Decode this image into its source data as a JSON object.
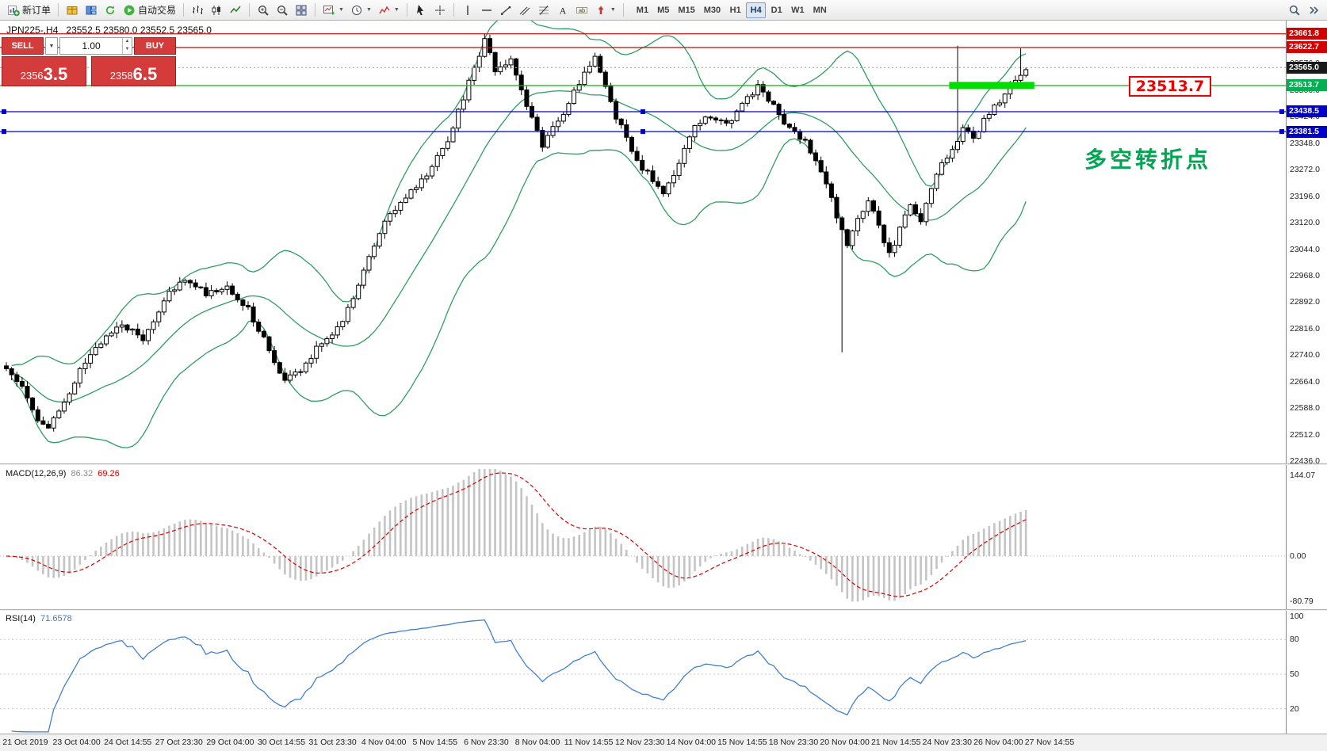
{
  "toolbar": {
    "new_order_label": "新订单",
    "autotrading_label": "自动交易",
    "timeframes": [
      "M1",
      "M5",
      "M15",
      "M30",
      "H1",
      "H4",
      "D1",
      "W1",
      "MN"
    ],
    "active_timeframe": "H4"
  },
  "chart": {
    "title": "JPN225-,H4",
    "ohlc": "23552.5 23580.0 23552.5 23565.0"
  },
  "one_click": {
    "sell_label": "SELL",
    "buy_label": "BUY",
    "volume": "1.00",
    "sell_price": "23563.5",
    "buy_price": "23586.5",
    "sell_price_main": "2356",
    "sell_price_big": "3.5",
    "buy_price_main": "2358",
    "buy_price_big": "6.5"
  },
  "annotations": {
    "price_callout": "23513.7",
    "turning_point": "多空转折点"
  },
  "price_scale": {
    "ticks": [
      "23652.0",
      "23576.0",
      "23500.0",
      "23424.0",
      "23348.0",
      "23272.0",
      "23196.0",
      "23120.0",
      "23044.0",
      "22968.0",
      "22892.0",
      "22816.0",
      "22740.0",
      "22664.0",
      "22588.0",
      "22512.0",
      "22436.0"
    ],
    "line_labels": [
      {
        "text": "23661.8",
        "price": 23661.8,
        "bg": "#d40000"
      },
      {
        "text": "23622.7",
        "price": 23622.7,
        "bg": "#d40000"
      },
      {
        "text": "23565.0",
        "price": 23565.0,
        "bg": "#1a1a1a"
      },
      {
        "text": "23513.7",
        "price": 23513.7,
        "bg": "#00b050"
      },
      {
        "text": "23438.5",
        "price": 23438.5,
        "bg": "#0000cc"
      },
      {
        "text": "23381.5",
        "price": 23381.5,
        "bg": "#0000cc"
      }
    ]
  },
  "macd_panel": {
    "label": "MACD(12,26,9)",
    "value": "86.32",
    "signal_value": "69.26",
    "scale": [
      {
        "text": "144.07",
        "v": 144.07
      },
      {
        "text": "0.00",
        "v": 0
      },
      {
        "text": "-80.79",
        "v": -80.79
      }
    ]
  },
  "rsi_panel": {
    "label": "RSI(14)",
    "value": "71.6578",
    "scale": [
      {
        "text": "100",
        "v": 100
      },
      {
        "text": "80",
        "v": 80
      },
      {
        "text": "50",
        "v": 50
      },
      {
        "text": "20",
        "v": 20
      }
    ]
  },
  "chart_data": {
    "type": "candlestick",
    "symbol": "JPN225-",
    "timeframe": "H4",
    "ohlc_display": {
      "open": "23552.5",
      "high": "23580.0",
      "low": "23552.5",
      "close": "23565.0"
    },
    "bar_count": 195,
    "y_range": [
      22430,
      23700
    ],
    "levels": [
      {
        "price": 23661.8,
        "color": "#dd0000",
        "style": "solid",
        "handles": false
      },
      {
        "price": 23622.7,
        "color": "#dd0000",
        "style": "solid",
        "handles": false
      },
      {
        "price": 23565.0,
        "color": "#aaaaaa",
        "style": "dotted",
        "handles": false,
        "role": "bid"
      },
      {
        "price": 23513.7,
        "color": "#00c000",
        "style": "solid",
        "handles": false
      },
      {
        "price": 23438.5,
        "color": "#0000cd",
        "style": "solid",
        "handles": true
      },
      {
        "price": 23381.5,
        "color": "#0000cd",
        "style": "solid",
        "handles": true
      }
    ],
    "highlight_segment": {
      "price": 23513.7,
      "bar_start": 180,
      "bar_end": 195,
      "color": "#00dd00"
    },
    "price_path": [
      [
        0,
        22700
      ],
      [
        3,
        22660
      ],
      [
        6,
        22560
      ],
      [
        8,
        22530
      ],
      [
        11,
        22600
      ],
      [
        14,
        22700
      ],
      [
        18,
        22780
      ],
      [
        22,
        22830
      ],
      [
        26,
        22790
      ],
      [
        30,
        22900
      ],
      [
        34,
        22960
      ],
      [
        38,
        22920
      ],
      [
        42,
        22940
      ],
      [
        46,
        22870
      ],
      [
        50,
        22760
      ],
      [
        53,
        22660
      ],
      [
        56,
        22700
      ],
      [
        60,
        22780
      ],
      [
        64,
        22830
      ],
      [
        68,
        22980
      ],
      [
        72,
        23120
      ],
      [
        76,
        23190
      ],
      [
        80,
        23260
      ],
      [
        84,
        23360
      ],
      [
        88,
        23520
      ],
      [
        91,
        23640
      ],
      [
        93,
        23560
      ],
      [
        96,
        23590
      ],
      [
        99,
        23460
      ],
      [
        102,
        23340
      ],
      [
        105,
        23410
      ],
      [
        108,
        23500
      ],
      [
        112,
        23590
      ],
      [
        115,
        23460
      ],
      [
        118,
        23360
      ],
      [
        121,
        23280
      ],
      [
        125,
        23210
      ],
      [
        128,
        23290
      ],
      [
        131,
        23390
      ],
      [
        134,
        23430
      ],
      [
        137,
        23400
      ],
      [
        140,
        23460
      ],
      [
        143,
        23510
      ],
      [
        146,
        23450
      ],
      [
        149,
        23390
      ],
      [
        152,
        23350
      ],
      [
        155,
        23270
      ],
      [
        158,
        23140
      ],
      [
        160,
        23050
      ],
      [
        162,
        23130
      ],
      [
        164,
        23190
      ],
      [
        166,
        23110
      ],
      [
        168,
        23030
      ],
      [
        170,
        23100
      ],
      [
        172,
        23170
      ],
      [
        174,
        23130
      ],
      [
        176,
        23210
      ],
      [
        178,
        23290
      ],
      [
        180,
        23330
      ],
      [
        182,
        23390
      ],
      [
        184,
        23370
      ],
      [
        186,
        23410
      ],
      [
        188,
        23450
      ],
      [
        190,
        23490
      ],
      [
        192,
        23530
      ],
      [
        194,
        23565
      ]
    ],
    "special_bars": [
      {
        "bar": 91,
        "high": 23662
      },
      {
        "bar": 159,
        "low": 22748
      },
      {
        "bar": 181,
        "high": 23628
      },
      {
        "bar": 193,
        "high": 23620
      }
    ],
    "indicators": {
      "bollinger": {
        "period": 20,
        "deviation": 2,
        "color": "#2f9e63"
      },
      "macd": {
        "fast": 12,
        "slow": 26,
        "signal": 9,
        "histogram_color": "#c4c4c4",
        "signal_color": "#dd0000"
      },
      "rsi": {
        "period": 14,
        "color": "#4080d0",
        "levels": [
          80,
          50,
          20
        ]
      }
    },
    "time_labels": [
      "21 Oct 2019",
      "23 Oct 04:00",
      "24 Oct 14:55",
      "27 Oct 23:30",
      "29 Oct 04:00",
      "30 Oct 14:55",
      "31 Oct 23:30",
      "4 Nov 04:00",
      "5 Nov 14:55",
      "6 Nov 23:30",
      "8 Nov 04:00",
      "11 Nov 14:55",
      "12 Nov 23:30",
      "14 Nov 04:00",
      "15 Nov 14:55",
      "18 Nov 23:30",
      "20 Nov 04:00",
      "21 Nov 14:55",
      "24 Nov 23:30",
      "26 Nov 04:00",
      "27 Nov 14:55"
    ]
  }
}
